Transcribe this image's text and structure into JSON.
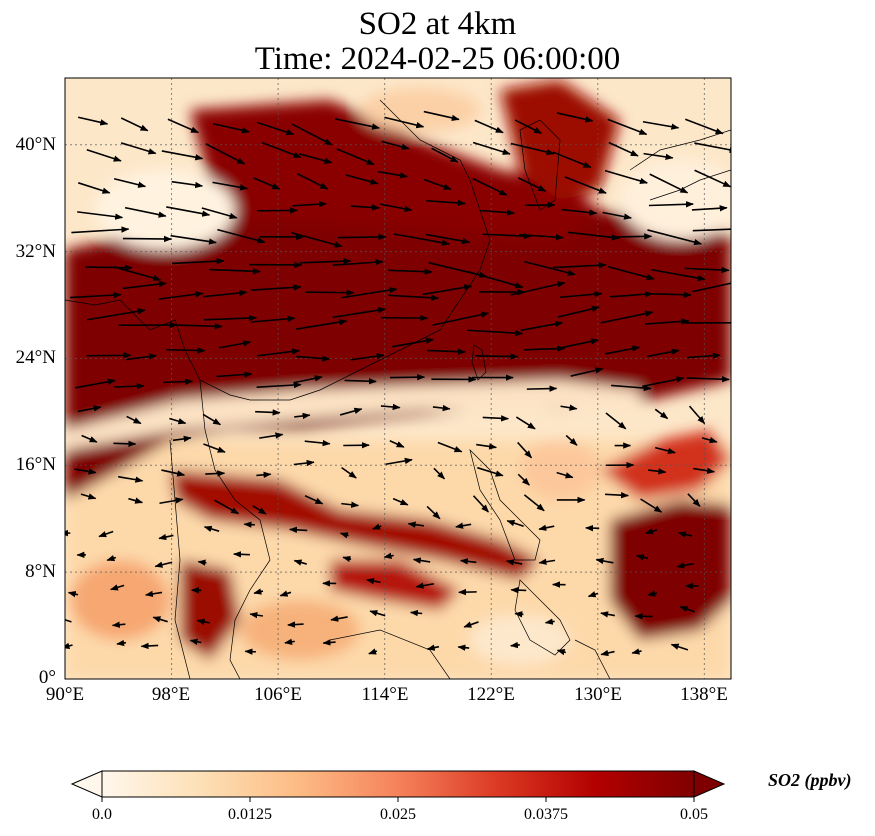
{
  "chart_data": {
    "type": "heatmap",
    "title": "SO2 at 4km",
    "subtitle": "Time: 2024-02-25 06:00:00",
    "xlabel": "",
    "ylabel": "",
    "x_ticks": [
      "90°E",
      "98°E",
      "106°E",
      "114°E",
      "122°E",
      "130°E",
      "138°E"
    ],
    "y_ticks": [
      "0°",
      "8°N",
      "16°N",
      "24°N",
      "32°N",
      "40°N"
    ],
    "x_range_deg_E": [
      90,
      140
    ],
    "y_range_deg_N": [
      0,
      45
    ],
    "grid": true,
    "colorbar": {
      "label": "SO2 (ppbv)",
      "ticks": [
        "0.0",
        "0.0125",
        "0.025",
        "0.0375",
        "0.05"
      ],
      "range": [
        0.0,
        0.05
      ],
      "extend": "both",
      "colormap": [
        "#fff7ec",
        "#fde0b6",
        "#fdbb84",
        "#f5825a",
        "#dc3a24",
        "#b30000",
        "#7f0000"
      ],
      "placement": "bottom"
    },
    "overlays": [
      "coastlines",
      "wind vectors"
    ]
  }
}
